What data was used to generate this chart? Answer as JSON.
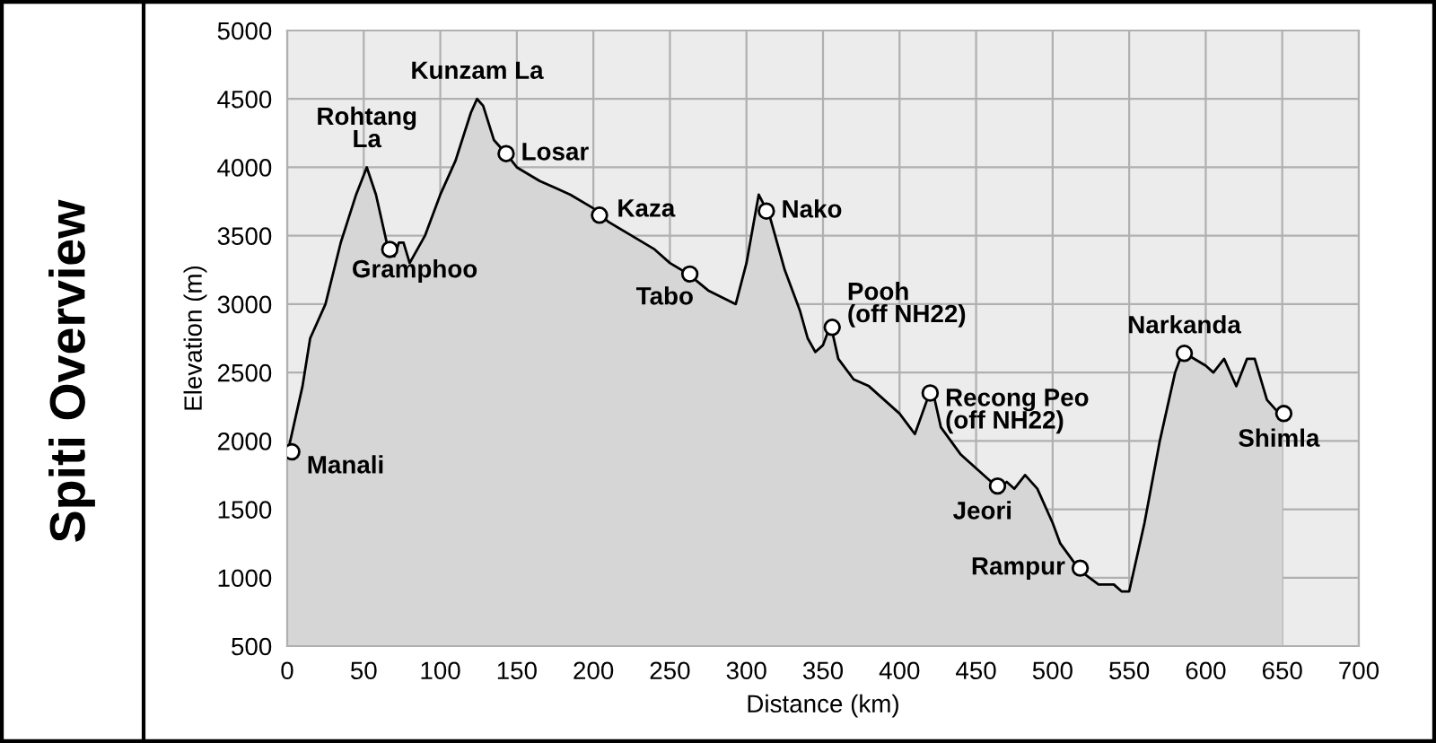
{
  "chart_data": {
    "type": "area",
    "title": "Spiti Overview",
    "xlabel": "Distance (km)",
    "ylabel": "Elevation (m)",
    "xlim": [
      0,
      700
    ],
    "ylim": [
      500,
      5000
    ],
    "xticks": [
      0,
      50,
      100,
      150,
      200,
      250,
      300,
      350,
      400,
      450,
      500,
      550,
      600,
      650,
      700
    ],
    "yticks": [
      500,
      1000,
      1500,
      2000,
      2500,
      3000,
      3500,
      4000,
      4500,
      5000
    ],
    "grid": true,
    "series": [
      {
        "color": "#d6d6d6",
        "x": [
          0,
          10,
          15,
          25,
          35,
          45,
          52,
          58,
          65,
          70,
          73,
          76,
          80,
          90,
          100,
          110,
          120,
          124,
          128,
          135,
          143,
          150,
          165,
          175,
          185,
          200,
          210,
          225,
          240,
          250,
          262,
          275,
          293,
          300,
          308,
          315,
          325,
          335,
          340,
          345,
          350,
          355,
          360,
          370,
          380,
          390,
          400,
          410,
          418,
          422,
          427,
          440,
          455,
          465,
          470,
          475,
          482,
          490,
          500,
          505,
          518,
          530,
          540,
          545,
          550,
          560,
          570,
          580,
          585,
          600,
          605,
          612,
          620,
          627,
          632,
          640,
          648,
          650
        ],
        "values": [
          1900,
          2400,
          2750,
          3000,
          3450,
          3800,
          4000,
          3800,
          3450,
          3350,
          3450,
          3450,
          3300,
          3500,
          3800,
          4050,
          4400,
          4500,
          4450,
          4200,
          4100,
          4000,
          3900,
          3850,
          3800,
          3700,
          3600,
          3500,
          3400,
          3300,
          3220,
          3100,
          3000,
          3300,
          3800,
          3650,
          3250,
          2950,
          2750,
          2650,
          2700,
          2850,
          2600,
          2450,
          2400,
          2300,
          2200,
          2050,
          2300,
          2350,
          2100,
          1900,
          1750,
          1650,
          1700,
          1650,
          1750,
          1650,
          1400,
          1250,
          1050,
          950,
          950,
          900,
          900,
          1400,
          2000,
          2500,
          2650,
          2550,
          2500,
          2600,
          2400,
          2600,
          2600,
          2300,
          2200,
          2150
        ]
      },
      {
        "type": "scatter",
        "color": "#ffffff",
        "marker": "circle",
        "x": [
          3,
          67,
          143,
          204,
          263,
          313,
          356,
          420,
          464,
          518,
          586,
          651
        ],
        "values": [
          1920,
          3400,
          4100,
          3650,
          3220,
          3680,
          2830,
          2350,
          1670,
          1070,
          2640,
          2200
        ]
      }
    ],
    "annotations": [
      {
        "text": "Manali",
        "x": 3,
        "y": 1920
      },
      {
        "text": "Rohtang\nLa",
        "x": 52,
        "y": 4000
      },
      {
        "text": "Gramphoo",
        "x": 67,
        "y": 3400
      },
      {
        "text": "Kunzam La",
        "x": 124,
        "y": 4500
      },
      {
        "text": "Losar",
        "x": 143,
        "y": 4100
      },
      {
        "text": "Kaza",
        "x": 204,
        "y": 3650
      },
      {
        "text": "Tabo",
        "x": 263,
        "y": 3220
      },
      {
        "text": "Nako",
        "x": 313,
        "y": 3680
      },
      {
        "text": "Pooh\n(off NH22)",
        "x": 356,
        "y": 2830
      },
      {
        "text": "Recong Peo\n(off NH22)",
        "x": 420,
        "y": 2350
      },
      {
        "text": "Jeori",
        "x": 464,
        "y": 1670
      },
      {
        "text": "Rampur",
        "x": 518,
        "y": 1070
      },
      {
        "text": "Narkanda",
        "x": 586,
        "y": 2640
      },
      {
        "text": "Shimla",
        "x": 651,
        "y": 2200
      }
    ]
  }
}
